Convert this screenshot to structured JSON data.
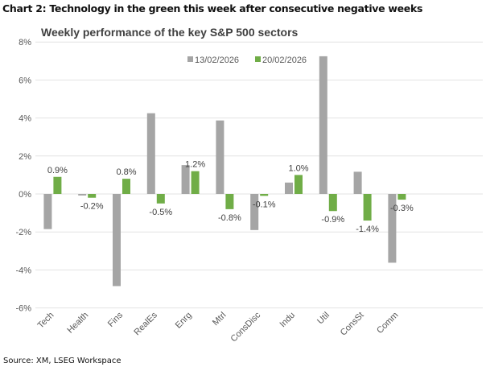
{
  "heading": "Chart 2: Technology in the green this week after consecutive negative weeks",
  "source": "Source: XM, LSEG Workspace",
  "chart_data": {
    "type": "bar",
    "title": "Weekly performance of the key S&P 500 sectors",
    "xlabel": "",
    "ylabel": "",
    "ylim": [
      -6,
      8
    ],
    "yticks": [
      "8%",
      "6%",
      "4%",
      "2%",
      "0%",
      "-2%",
      "-4%",
      "-6%"
    ],
    "ytick_values": [
      8,
      6,
      4,
      2,
      0,
      -2,
      -4,
      -6
    ],
    "grid": true,
    "legend_position": "top-center",
    "categories": [
      "Tech",
      "Health",
      "Fins",
      "RealEs",
      "Enrg",
      "Mtrl",
      "ConsDisc",
      "Indu",
      "Util",
      "ConsSt",
      "Comm"
    ],
    "series": [
      {
        "name": "13/02/2026",
        "color": "#a5a5a5",
        "values": [
          -1.85,
          -0.08,
          -4.85,
          4.25,
          1.52,
          3.87,
          -1.9,
          0.6,
          7.25,
          1.17,
          -3.62
        ],
        "labels": []
      },
      {
        "name": "20/02/2026",
        "color": "#70ad47",
        "values": [
          0.9,
          -0.2,
          0.8,
          -0.5,
          1.2,
          -0.8,
          -0.1,
          1.0,
          -0.9,
          -1.4,
          -0.3
        ],
        "labels": [
          "0.9%",
          "-0.2%",
          "0.8%",
          "-0.5%",
          "1.2%",
          "-0.8%",
          "-0.1%",
          "1.0%",
          "-0.9%",
          "-1.4%",
          "-0.3%"
        ]
      }
    ]
  }
}
